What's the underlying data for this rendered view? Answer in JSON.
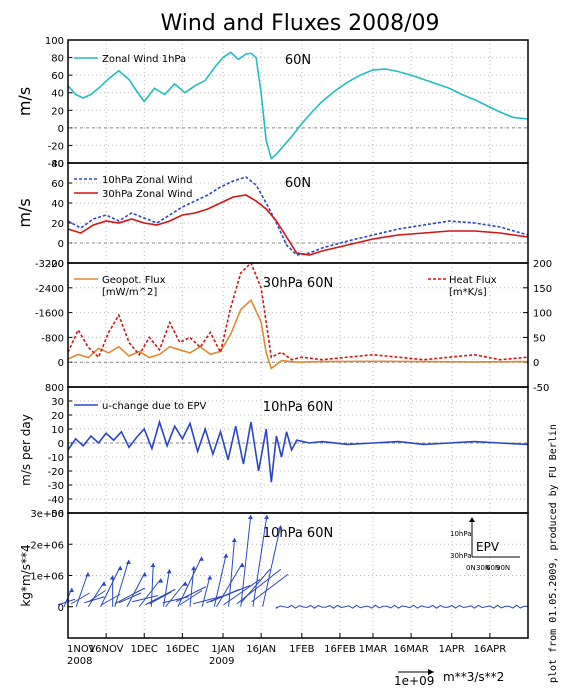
{
  "title": "Wind and Fluxes 2008/09",
  "credit": "plot from 01.05.2009, produced by FU Berlin",
  "x_axis": {
    "ticks": [
      "1NOV",
      "16NOV",
      "1DEC",
      "16DEC",
      "1JAN",
      "16JAN",
      "1FEB",
      "16FEB",
      "1MAR",
      "16MAR",
      "1APR",
      "16APR"
    ],
    "tick_days": [
      0,
      15,
      30,
      45,
      61,
      76,
      92,
      107,
      120,
      135,
      151,
      166
    ],
    "year_labels": [
      {
        "text": "2008",
        "day": 0
      },
      {
        "text": "2009",
        "day": 61
      }
    ],
    "range_days": [
      0,
      181
    ]
  },
  "colors": {
    "cyan": "#1fbfbf",
    "blue": "#2b46c4",
    "red": "#d41414",
    "orange": "#e08a30",
    "grid": "#bbbbbb"
  },
  "chart_data": [
    {
      "type": "line",
      "location": "60N",
      "ylabel": "m/s",
      "ylim": [
        -40,
        100
      ],
      "yticks": [
        -40,
        -20,
        0,
        20,
        40,
        60,
        80,
        100
      ],
      "series": [
        {
          "name": "Zonal Wind 1hPa",
          "color": "#1fbfbf",
          "x": [
            0,
            3,
            6,
            9,
            12,
            16,
            20,
            24,
            27,
            30,
            34,
            38,
            42,
            46,
            50,
            54,
            58,
            61,
            64,
            67,
            70,
            72,
            74,
            76,
            78,
            80,
            82,
            85,
            88,
            92,
            96,
            100,
            105,
            110,
            115,
            120,
            125,
            130,
            135,
            140,
            145,
            150,
            155,
            160,
            165,
            170,
            175,
            181
          ],
          "y": [
            48,
            38,
            34,
            38,
            45,
            56,
            65,
            55,
            42,
            30,
            45,
            38,
            50,
            40,
            48,
            54,
            70,
            80,
            86,
            78,
            84,
            85,
            80,
            40,
            -15,
            -35,
            -30,
            -20,
            -10,
            5,
            18,
            30,
            42,
            52,
            60,
            66,
            67,
            64,
            60,
            55,
            50,
            45,
            38,
            32,
            25,
            18,
            12,
            10
          ]
        }
      ]
    },
    {
      "type": "line",
      "location": "60N",
      "ylabel": "m/s",
      "ylim": [
        -20,
        80
      ],
      "yticks": [
        -20,
        0,
        20,
        40,
        60,
        80
      ],
      "series": [
        {
          "name": "10hPa Zonal Wind",
          "color": "#2b46c4",
          "dashed": true,
          "x": [
            0,
            5,
            10,
            15,
            20,
            25,
            30,
            35,
            40,
            45,
            50,
            55,
            60,
            65,
            70,
            74,
            78,
            82,
            86,
            90,
            95,
            100,
            110,
            120,
            130,
            140,
            150,
            160,
            170,
            181
          ],
          "y": [
            22,
            15,
            24,
            28,
            22,
            30,
            25,
            20,
            28,
            36,
            42,
            48,
            56,
            62,
            66,
            58,
            40,
            20,
            -2,
            -12,
            -10,
            -5,
            2,
            8,
            14,
            18,
            22,
            20,
            16,
            8
          ]
        },
        {
          "name": "30hPa Zonal Wind",
          "color": "#d41414",
          "x": [
            0,
            5,
            10,
            15,
            20,
            25,
            30,
            35,
            40,
            45,
            50,
            55,
            60,
            65,
            70,
            74,
            78,
            82,
            86,
            90,
            95,
            100,
            110,
            120,
            130,
            140,
            150,
            160,
            170,
            181
          ],
          "y": [
            14,
            10,
            18,
            22,
            20,
            24,
            20,
            18,
            22,
            28,
            30,
            34,
            40,
            46,
            48,
            42,
            34,
            22,
            6,
            -10,
            -12,
            -8,
            -2,
            4,
            8,
            10,
            12,
            12,
            10,
            6
          ]
        }
      ]
    },
    {
      "type": "line",
      "location": "30hPa 60N",
      "ylabel": "",
      "ylim_left": [
        -3200,
        800
      ],
      "yticks_left": [
        -3200,
        -2400,
        -1600,
        -800,
        0,
        800
      ],
      "ylim_right": [
        -50,
        200
      ],
      "yticks_right": [
        -50,
        0,
        50,
        100,
        150,
        200
      ],
      "series": [
        {
          "name": "Geopot. Flux",
          "unit": "[mW/m^2]",
          "color": "#e08a30",
          "axis": "left",
          "x": [
            0,
            4,
            8,
            12,
            16,
            20,
            24,
            28,
            32,
            36,
            40,
            44,
            48,
            52,
            56,
            60,
            64,
            68,
            72,
            76,
            78,
            80,
            84,
            90,
            100,
            120,
            140,
            160,
            181
          ],
          "y": [
            -100,
            -250,
            -150,
            -450,
            -300,
            -500,
            -200,
            -350,
            -150,
            -250,
            -500,
            -400,
            -300,
            -500,
            -250,
            -350,
            -900,
            -1700,
            -2000,
            -1300,
            -300,
            200,
            -50,
            0,
            -20,
            -30,
            -20,
            -10,
            -20
          ]
        },
        {
          "name": "Heat Flux",
          "unit": "[m*K/s]",
          "color": "#d41414",
          "axis": "right",
          "dashed": true,
          "x": [
            0,
            4,
            8,
            12,
            16,
            20,
            24,
            28,
            32,
            36,
            40,
            44,
            48,
            52,
            56,
            60,
            64,
            68,
            72,
            76,
            78,
            80,
            84,
            88,
            92,
            100,
            110,
            120,
            130,
            140,
            150,
            160,
            170,
            181
          ],
          "y": [
            20,
            65,
            30,
            10,
            60,
            95,
            40,
            15,
            50,
            25,
            80,
            40,
            50,
            30,
            60,
            20,
            110,
            180,
            200,
            150,
            80,
            10,
            20,
            5,
            10,
            5,
            10,
            15,
            10,
            5,
            10,
            15,
            5,
            10
          ]
        }
      ]
    },
    {
      "type": "line",
      "location": "10hPa 60N",
      "ylabel": "m/s per day",
      "ylim": [
        -50,
        40
      ],
      "yticks": [
        -50,
        -40,
        -30,
        -20,
        -10,
        0,
        10,
        20,
        30
      ],
      "series": [
        {
          "name": "u-change due to EPV",
          "color": "#2b46c4",
          "x": [
            0,
            3,
            6,
            9,
            12,
            15,
            18,
            21,
            24,
            27,
            30,
            33,
            36,
            39,
            42,
            45,
            48,
            51,
            54,
            57,
            60,
            63,
            66,
            69,
            72,
            75,
            78,
            80,
            82,
            84,
            86,
            88,
            90,
            95,
            100,
            110,
            120,
            130,
            140,
            150,
            160,
            170,
            181
          ],
          "y": [
            -5,
            3,
            -2,
            5,
            0,
            7,
            2,
            8,
            -3,
            4,
            10,
            -4,
            15,
            -2,
            12,
            3,
            14,
            -6,
            10,
            -8,
            8,
            -12,
            12,
            -15,
            15,
            -20,
            10,
            -28,
            5,
            -10,
            8,
            -5,
            2,
            0,
            1,
            -1,
            0,
            1,
            -1,
            0,
            1,
            0,
            -1
          ]
        }
      ]
    },
    {
      "type": "vector",
      "location": "10hPa 60N",
      "ylabel": "kg*m/s**4",
      "ylim": [
        -1,
        3
      ],
      "yticks": [
        "0",
        "1e+06",
        "2e+06",
        "3e+06"
      ],
      "ytick_values": [
        0,
        1,
        2,
        3
      ],
      "legend_title": "EPV",
      "inset_labels": [
        "10hPa",
        "30hPa",
        "0N",
        "30N",
        "60N",
        "90N"
      ],
      "reference_vector": "1e+09",
      "reference_unit": "m**3/s**2",
      "series": [
        {
          "name": "EPV",
          "color": "#2b46c4",
          "x": [
            0,
            4,
            8,
            12,
            16,
            20,
            24,
            28,
            32,
            36,
            40,
            44,
            48,
            52,
            56,
            60,
            64,
            68,
            72,
            75
          ],
          "y": [
            0.6,
            1.1,
            0.8,
            1.3,
            1.0,
            1.5,
            1.1,
            0.9,
            1.4,
            1.2,
            0.8,
            1.6,
            1.3,
            1.0,
            1.7,
            1.4,
            2.2,
            3.0,
            3.0,
            2.6
          ]
        }
      ]
    }
  ]
}
